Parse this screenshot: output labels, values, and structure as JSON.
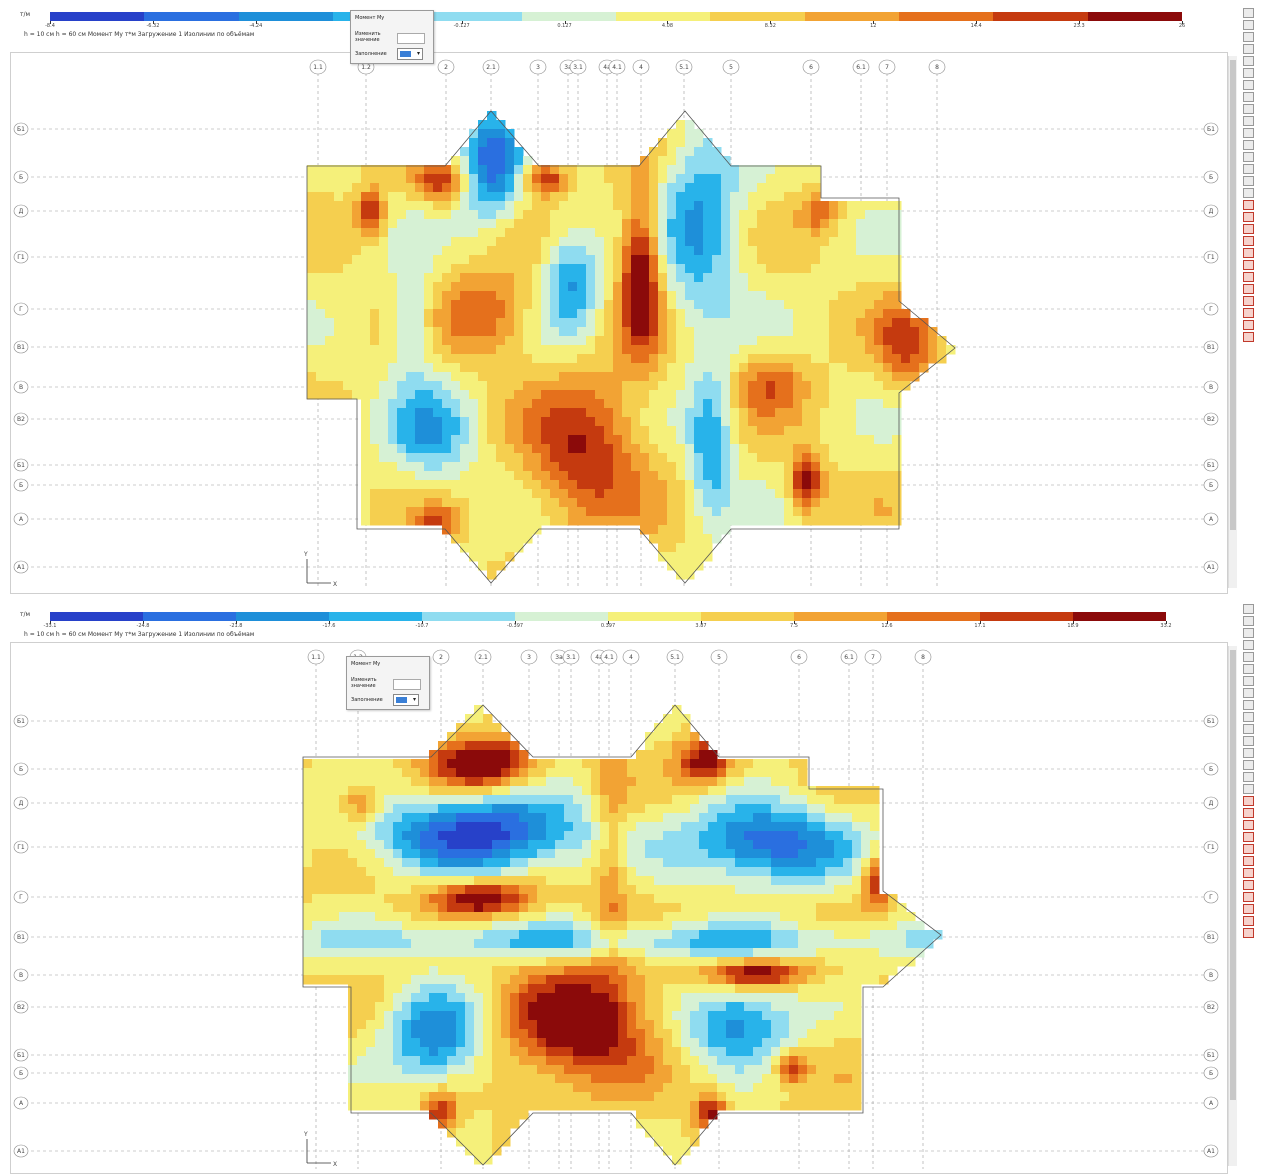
{
  "legend_top": {
    "unit": "т/м",
    "ticks": [
      "-8.4",
      "-6.32",
      "-4.24",
      "",
      "-0.127",
      "0.127",
      "4.08",
      "8.32",
      "12",
      "14.4",
      "23.3",
      "26"
    ],
    "info": "h = 10 см  h = 60 см  Момент My  т*м  Загружение 1  Изолинии по объёмам"
  },
  "legend_bottom": {
    "unit": "т/м",
    "ticks": [
      "-33.1",
      "-24.8",
      "-21.8",
      "-17.6",
      "-10.7",
      "-0.397",
      "0.397",
      "3.87",
      "7.5",
      "12.6",
      "17.1",
      "18.9",
      "33.2"
    ],
    "info": "h = 10 см  h = 60 см  Момент My  т*м  Загружение 1  Изолинии по объёмам"
  },
  "popup": {
    "title": "Момент My",
    "row1": "Изменить значение",
    "row2": "Заполнение"
  },
  "axes_top": {
    "x_labels": [
      "1.1",
      "1.2",
      "2",
      "2.1",
      "3",
      "3а",
      "3.1",
      "4а",
      "4.1",
      "4",
      "5.1",
      "5",
      "6",
      "6.1",
      "7",
      "8"
    ],
    "y_labels": [
      "Б1",
      "Б",
      "Д",
      "Г1",
      "Г",
      "В1",
      "В",
      "В2",
      "Б1",
      "Б",
      "А",
      "А1"
    ],
    "axis_y": "Y",
    "axis_x": "X"
  },
  "axes_bottom": {
    "x_labels": [
      "1.1",
      "1.2",
      "2",
      "2.1",
      "3",
      "3а",
      "3.1",
      "4а",
      "4.1",
      "4",
      "5.1",
      "5",
      "6",
      "6.1",
      "7",
      "8"
    ],
    "y_labels": [
      "Б1",
      "Б",
      "Д",
      "Г1",
      "Г",
      "В1",
      "В",
      "В2",
      "Б1",
      "Б",
      "А",
      "А1"
    ],
    "axis_y": "Y",
    "axis_x": "X"
  },
  "colors": {
    "scale": [
      "#2741c9",
      "#2a6fe0",
      "#1e8fd9",
      "#28b3ea",
      "#8fdcf0",
      "#d6f1d4",
      "#f5f07a",
      "#f5cf4f",
      "#f2a334",
      "#e5701c",
      "#c53a0f",
      "#8b0a0a"
    ],
    "grid_line": "#9c9c9c",
    "plate_bg": "#58c7ee"
  }
}
